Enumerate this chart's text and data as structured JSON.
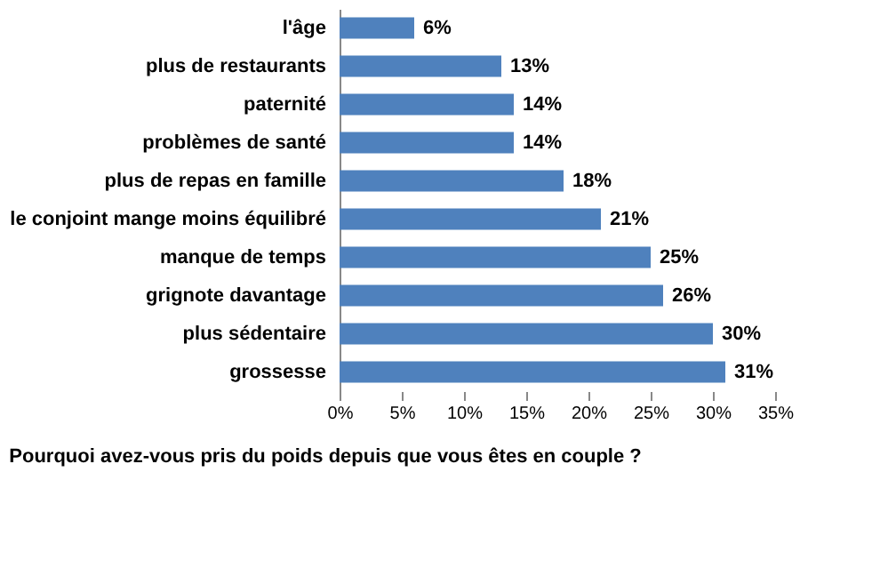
{
  "chart_data": {
    "type": "bar",
    "orientation": "horizontal",
    "title": "Pourquoi avez-vous pris du poids depuis que vous êtes en couple ?",
    "categories": [
      "l'âge",
      "plus de restaurants",
      "paternité",
      "problèmes de santé",
      "plus de repas en famille",
      "le conjoint mange moins équilibré",
      "manque de temps",
      "grignote davantage",
      "plus sédentaire",
      "grossesse"
    ],
    "values": [
      6,
      13,
      14,
      14,
      18,
      21,
      25,
      26,
      30,
      31
    ],
    "value_labels": [
      "6%",
      "13%",
      "14%",
      "14%",
      "18%",
      "21%",
      "25%",
      "26%",
      "30%",
      "31%"
    ],
    "color": "#4f81bd",
    "xlim": [
      0,
      35
    ],
    "xticks": [
      {
        "value": 0,
        "label": "0%"
      },
      {
        "value": 5,
        "label": "5%"
      },
      {
        "value": 10,
        "label": "10%"
      },
      {
        "value": 15,
        "label": "15%"
      },
      {
        "value": 20,
        "label": "20%"
      },
      {
        "value": 25,
        "label": "25%"
      },
      {
        "value": 30,
        "label": "30%"
      },
      {
        "value": 35,
        "label": "35%"
      }
    ],
    "grid": false
  }
}
